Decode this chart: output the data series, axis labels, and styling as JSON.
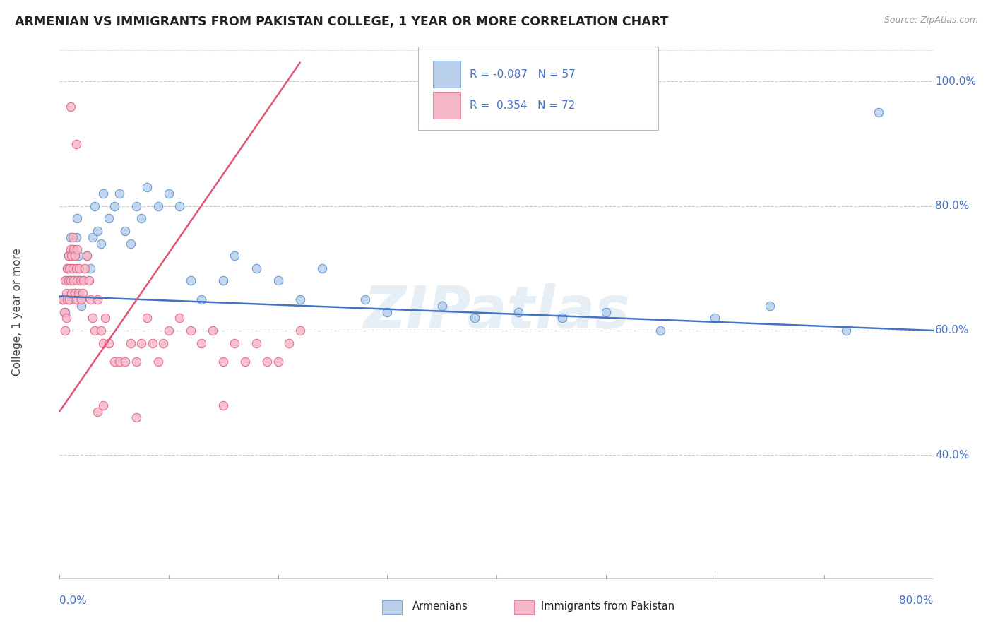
{
  "title": "ARMENIAN VS IMMIGRANTS FROM PAKISTAN COLLEGE, 1 YEAR OR MORE CORRELATION CHART",
  "source": "Source: ZipAtlas.com",
  "ylabel": "College, 1 year or more",
  "ytick_labels": [
    "40.0%",
    "60.0%",
    "80.0%",
    "100.0%"
  ],
  "ytick_values": [
    0.4,
    0.6,
    0.8,
    1.0
  ],
  "xlim": [
    0.0,
    0.8
  ],
  "ylim": [
    0.2,
    1.06
  ],
  "legend_r_armenians": "-0.087",
  "legend_n_armenians": "57",
  "legend_r_pakistan": "0.354",
  "legend_n_pakistan": "72",
  "color_armenians_fill": "#b8d0ea",
  "color_armenians_edge": "#5b8fc9",
  "color_pakistan_fill": "#f5b8c8",
  "color_pakistan_edge": "#e06080",
  "color_line_armenians": "#4472c4",
  "color_line_pakistan": "#e05570",
  "color_axis_blue": "#4472c4",
  "color_title": "#222222",
  "color_source": "#999999",
  "watermark_text": "ZIPatlas",
  "arm_trend_x": [
    0.0,
    0.8
  ],
  "arm_trend_y": [
    0.655,
    0.6
  ],
  "pak_trend_x": [
    0.0,
    0.22
  ],
  "pak_trend_y": [
    0.47,
    1.03
  ],
  "armenians_x": [
    0.003,
    0.005,
    0.006,
    0.007,
    0.008,
    0.009,
    0.01,
    0.01,
    0.011,
    0.012,
    0.013,
    0.014,
    0.015,
    0.016,
    0.017,
    0.018,
    0.019,
    0.02,
    0.022,
    0.025,
    0.028,
    0.03,
    0.032,
    0.035,
    0.038,
    0.04,
    0.045,
    0.05,
    0.055,
    0.06,
    0.065,
    0.07,
    0.075,
    0.08,
    0.09,
    0.1,
    0.11,
    0.12,
    0.13,
    0.15,
    0.16,
    0.18,
    0.2,
    0.22,
    0.24,
    0.28,
    0.3,
    0.35,
    0.38,
    0.42,
    0.46,
    0.5,
    0.55,
    0.6,
    0.65,
    0.72,
    0.75
  ],
  "armenians_y": [
    0.65,
    0.63,
    0.68,
    0.7,
    0.72,
    0.65,
    0.68,
    0.75,
    0.7,
    0.73,
    0.68,
    0.66,
    0.75,
    0.78,
    0.72,
    0.68,
    0.65,
    0.64,
    0.68,
    0.72,
    0.7,
    0.75,
    0.8,
    0.76,
    0.74,
    0.82,
    0.78,
    0.8,
    0.82,
    0.76,
    0.74,
    0.8,
    0.78,
    0.83,
    0.8,
    0.82,
    0.8,
    0.68,
    0.65,
    0.68,
    0.72,
    0.7,
    0.68,
    0.65,
    0.7,
    0.65,
    0.63,
    0.64,
    0.62,
    0.63,
    0.62,
    0.63,
    0.6,
    0.62,
    0.64,
    0.6,
    0.95
  ],
  "pakistan_x": [
    0.003,
    0.004,
    0.005,
    0.005,
    0.006,
    0.006,
    0.007,
    0.007,
    0.008,
    0.008,
    0.009,
    0.009,
    0.01,
    0.01,
    0.011,
    0.011,
    0.012,
    0.012,
    0.013,
    0.013,
    0.014,
    0.014,
    0.015,
    0.015,
    0.016,
    0.016,
    0.017,
    0.018,
    0.019,
    0.02,
    0.021,
    0.022,
    0.023,
    0.025,
    0.027,
    0.028,
    0.03,
    0.032,
    0.035,
    0.038,
    0.04,
    0.042,
    0.045,
    0.05,
    0.055,
    0.06,
    0.065,
    0.07,
    0.075,
    0.08,
    0.085,
    0.09,
    0.095,
    0.1,
    0.11,
    0.12,
    0.13,
    0.14,
    0.15,
    0.16,
    0.17,
    0.18,
    0.19,
    0.2,
    0.21,
    0.22,
    0.035,
    0.04,
    0.07,
    0.15,
    0.01,
    0.015
  ],
  "pakistan_y": [
    0.65,
    0.63,
    0.6,
    0.68,
    0.62,
    0.66,
    0.65,
    0.7,
    0.68,
    0.72,
    0.65,
    0.7,
    0.68,
    0.73,
    0.66,
    0.72,
    0.7,
    0.75,
    0.68,
    0.73,
    0.66,
    0.72,
    0.65,
    0.7,
    0.68,
    0.73,
    0.66,
    0.7,
    0.68,
    0.65,
    0.66,
    0.68,
    0.7,
    0.72,
    0.68,
    0.65,
    0.62,
    0.6,
    0.65,
    0.6,
    0.58,
    0.62,
    0.58,
    0.55,
    0.55,
    0.55,
    0.58,
    0.55,
    0.58,
    0.62,
    0.58,
    0.55,
    0.58,
    0.6,
    0.62,
    0.6,
    0.58,
    0.6,
    0.55,
    0.58,
    0.55,
    0.58,
    0.55,
    0.55,
    0.58,
    0.6,
    0.47,
    0.48,
    0.46,
    0.48,
    0.96,
    0.9
  ]
}
